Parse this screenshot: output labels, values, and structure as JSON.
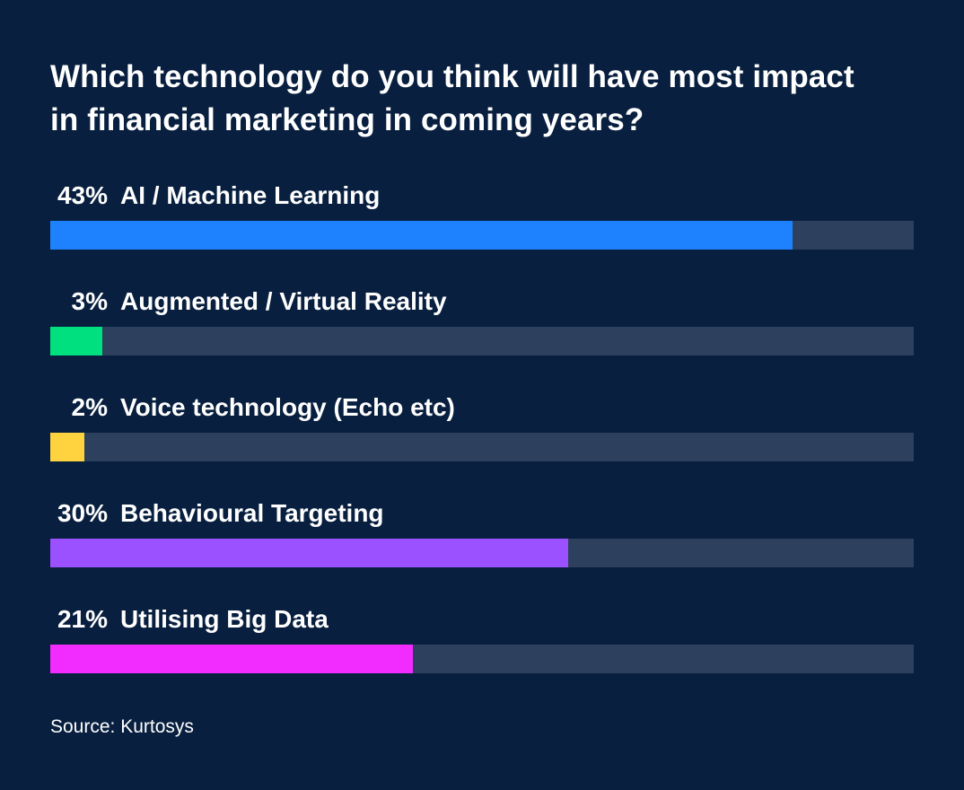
{
  "chart_data": {
    "type": "bar",
    "title": "Which technology do you think will have most impact in financial marketing in coming years?",
    "categories": [
      "AI / Machine Learning",
      "Augmented / Virtual Reality",
      "Voice technology (Echo etc)",
      "Behavioural Targeting",
      "Utilising Big Data"
    ],
    "values": [
      43,
      3,
      2,
      30,
      21
    ],
    "value_labels": [
      "43%",
      "3%",
      "2%",
      "30%",
      "21%"
    ],
    "colors": [
      "#1e82ff",
      "#00e07f",
      "#ffd240",
      "#9b51ff",
      "#f22bff"
    ],
    "track_color": "#2d405d",
    "xlim": [
      0,
      50
    ],
    "xlabel": "",
    "ylabel": "",
    "grid": false,
    "legend": "none"
  },
  "source": "Source: Kurtosys",
  "background_color": "#081f3f"
}
